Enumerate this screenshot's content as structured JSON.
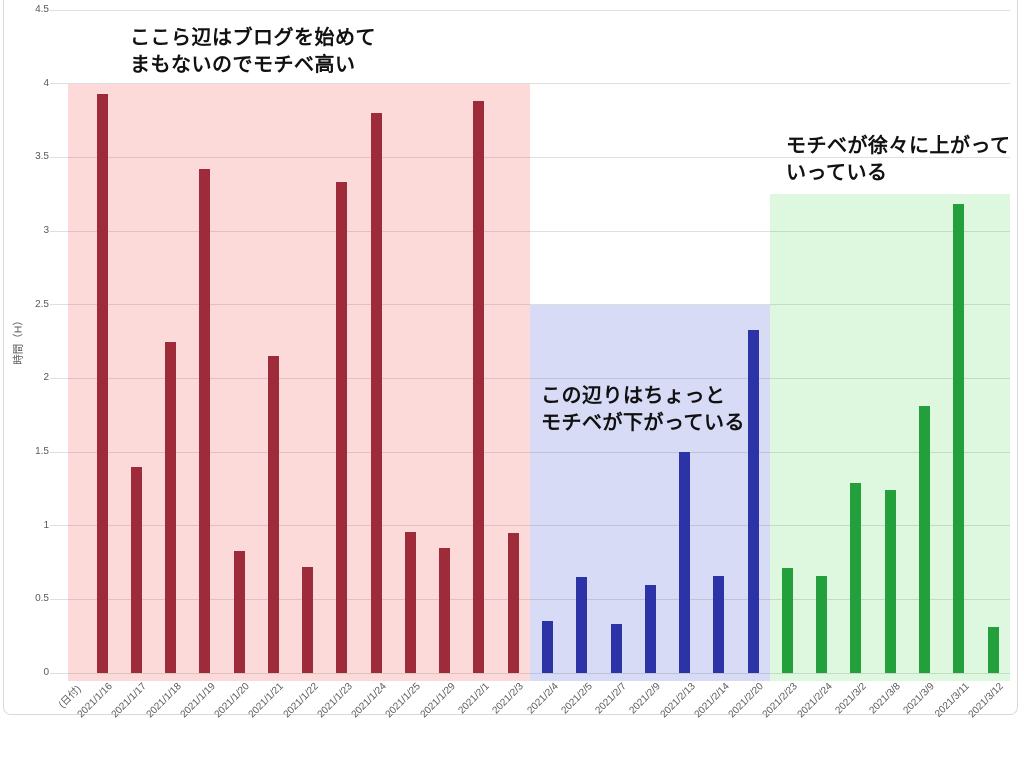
{
  "page": {
    "background": "#FFFFFF",
    "frame_border_color": "#D9D9D9"
  },
  "chart_data": {
    "type": "bar",
    "title": "",
    "ylabel": "時間（H）",
    "xlabel_first_slot": "(日付)",
    "ylim": [
      0,
      4.5
    ],
    "yticks": [
      "0",
      "0.5",
      "1",
      "1.5",
      "2",
      "2.5",
      "3",
      "3.5",
      "4",
      "4.5"
    ],
    "grid": true,
    "gridline_color": "#D9D9D9",
    "tick_label_color": "#595959",
    "legend": "none",
    "categories": [
      "2021/1/16",
      "2021/1/17",
      "2021/1/18",
      "2021/1/19",
      "2021/1/20",
      "2021/1/21",
      "2021/1/22",
      "2021/1/23",
      "2021/1/24",
      "2021/1/25",
      "2021/1/29",
      "2021/2/1",
      "2021/2/3",
      "2021/2/4",
      "2021/2/5",
      "2021/2/7",
      "2021/2/9",
      "2021/2/13",
      "2021/2/14",
      "2021/2/20",
      "2021/2/23",
      "2021/2/24",
      "2021/3/2",
      "2021/3/8",
      "2021/3/9",
      "2021/3/11",
      "2021/3/12"
    ],
    "values": [
      3.93,
      1.4,
      2.25,
      3.42,
      0.83,
      2.15,
      0.72,
      3.33,
      3.8,
      0.96,
      0.85,
      3.88,
      0.95,
      0.35,
      0.65,
      0.33,
      0.6,
      1.5,
      0.66,
      2.33,
      0.71,
      0.66,
      1.29,
      1.24,
      1.81,
      3.18,
      0.31
    ],
    "phases": [
      {
        "from_index": 0,
        "to_index": 12,
        "from_category": "2021/1/16",
        "to_category": "2021/2/3",
        "bar_color": "#9E2B3A",
        "band_color": "#FBDAD9",
        "band_top_value": 4.0,
        "annotation": {
          "line1": "ここら辺はブログを始めて",
          "line2": "まもないのでモチベ高い"
        }
      },
      {
        "from_index": 13,
        "to_index": 19,
        "from_category": "2021/2/4",
        "to_category": "2021/2/20",
        "bar_color": "#2B33A6",
        "band_color": "#D8DBF5",
        "band_top_value": 2.5,
        "annotation": {
          "line1": "この辺りはちょっと",
          "line2": "モチベが下がっている"
        }
      },
      {
        "from_index": 20,
        "to_index": 26,
        "from_category": "2021/2/23",
        "to_category": "2021/3/12",
        "bar_color": "#23A03C",
        "band_color": "#DEF8E0",
        "band_top_value": 3.25,
        "annotation": {
          "line1": "モチベが徐々に上がって",
          "line2": "いっている"
        }
      }
    ]
  }
}
